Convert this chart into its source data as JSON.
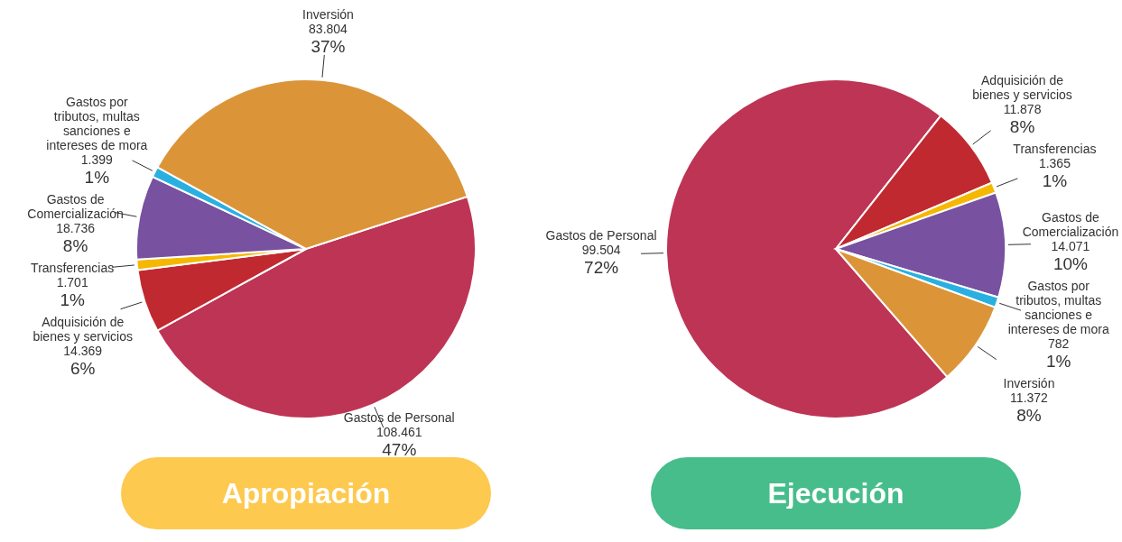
{
  "chart_data": [
    {
      "type": "pie",
      "title": "Apropiación",
      "categories": [
        "Gastos de Personal",
        "Adquisición de bienes y servicios",
        "Transferencias",
        "Gastos de Comercialización",
        "Gastos por tributos, multas sanciones e intereses de mora",
        "Inversión"
      ],
      "values": [
        47,
        6,
        1,
        8,
        1,
        37
      ],
      "value_labels": [
        "108.461\n47%",
        "14.369\n6%",
        "1.701\n1%",
        "18.736\n8%",
        "1.399\n1%",
        "83.804\n37%"
      ],
      "colors": [
        "#be3455",
        "#c0292f",
        "#f5b800",
        "#7851a0",
        "#2ab0e0",
        "#db9538"
      ]
    },
    {
      "type": "pie",
      "title": "Ejecución",
      "categories": [
        "Gastos de Personal",
        "Adquisición de bienes y servicios",
        "Transferencias",
        "Gastos de Comercialización",
        "Gastos por tributos, multas sanciones e intereses de mora",
        "Inversión"
      ],
      "values": [
        72,
        8,
        1,
        10,
        1,
        8
      ],
      "value_labels": [
        "99.504\n72%",
        "11.878\n8%",
        "1.365\n1%",
        "14.071\n10%",
        "782\n1%",
        "11.372\n8%"
      ],
      "colors": [
        "#be3455",
        "#c0292f",
        "#f5b800",
        "#7851a0",
        "#2ab0e0",
        "#db9538"
      ]
    }
  ]
}
